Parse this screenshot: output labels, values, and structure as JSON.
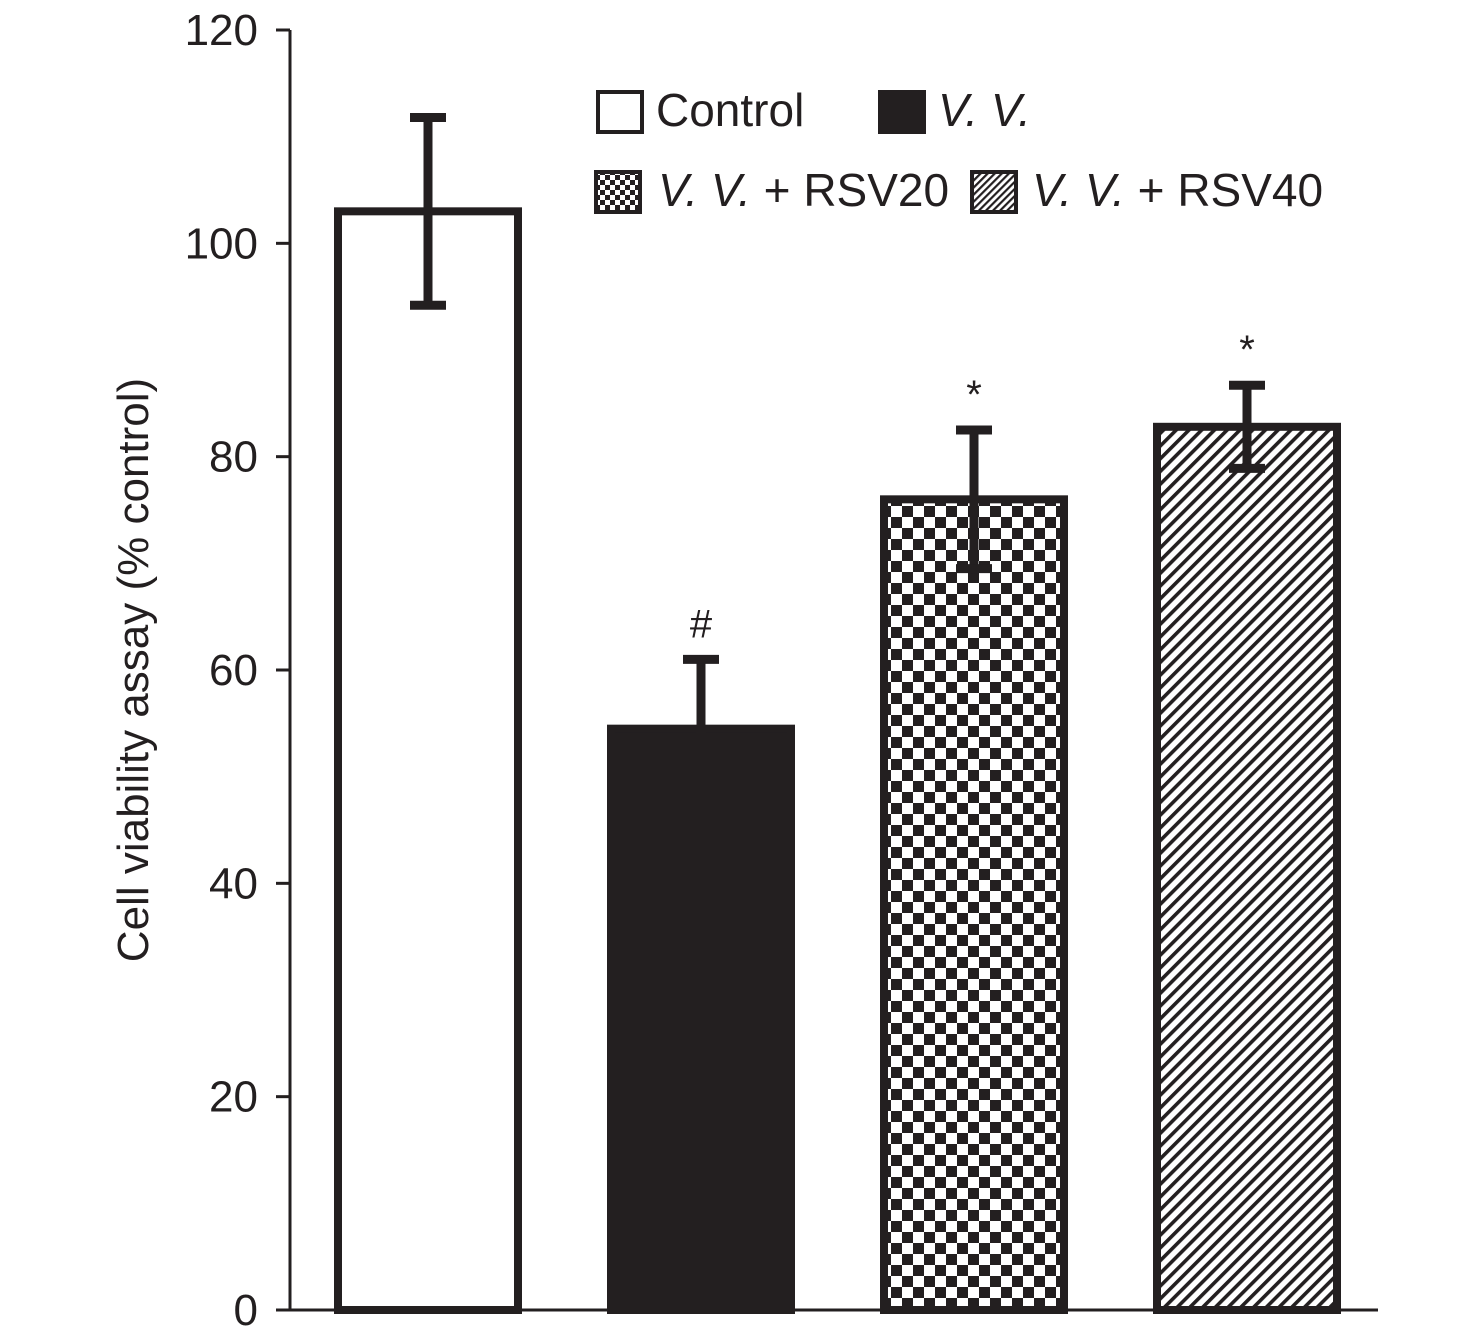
{
  "chart_data": {
    "type": "bar",
    "title": "",
    "xlabel": "",
    "ylabel": "Cell viability assay (% control)",
    "ylim": [
      0,
      120
    ],
    "yticks": [
      "0",
      "20",
      "40",
      "60",
      "80",
      "100",
      "120"
    ],
    "categories": [
      "Control",
      "V. V.",
      "V. V. + RSV20",
      "V. V. + RSV40"
    ],
    "values": [
      103,
      54.5,
      76,
      82.8
    ],
    "errors": [
      8.8,
      6.5,
      6.5,
      3.9
    ],
    "annotations": [
      "",
      "#",
      "*",
      "*"
    ],
    "legend": {
      "placement": "top-right",
      "entries": [
        {
          "label": "Control",
          "fill": "white"
        },
        {
          "label_italic": "V. V.",
          "label_suffix": "",
          "fill": "solid"
        },
        {
          "label_italic": "V. V.",
          "label_suffix": " + RSV20",
          "fill": "checker"
        },
        {
          "label_italic": "V. V.",
          "label_suffix": " + RSV40",
          "fill": "diagonal"
        }
      ]
    },
    "colors": {
      "ink": "#231f20",
      "background": "#ffffff"
    }
  }
}
